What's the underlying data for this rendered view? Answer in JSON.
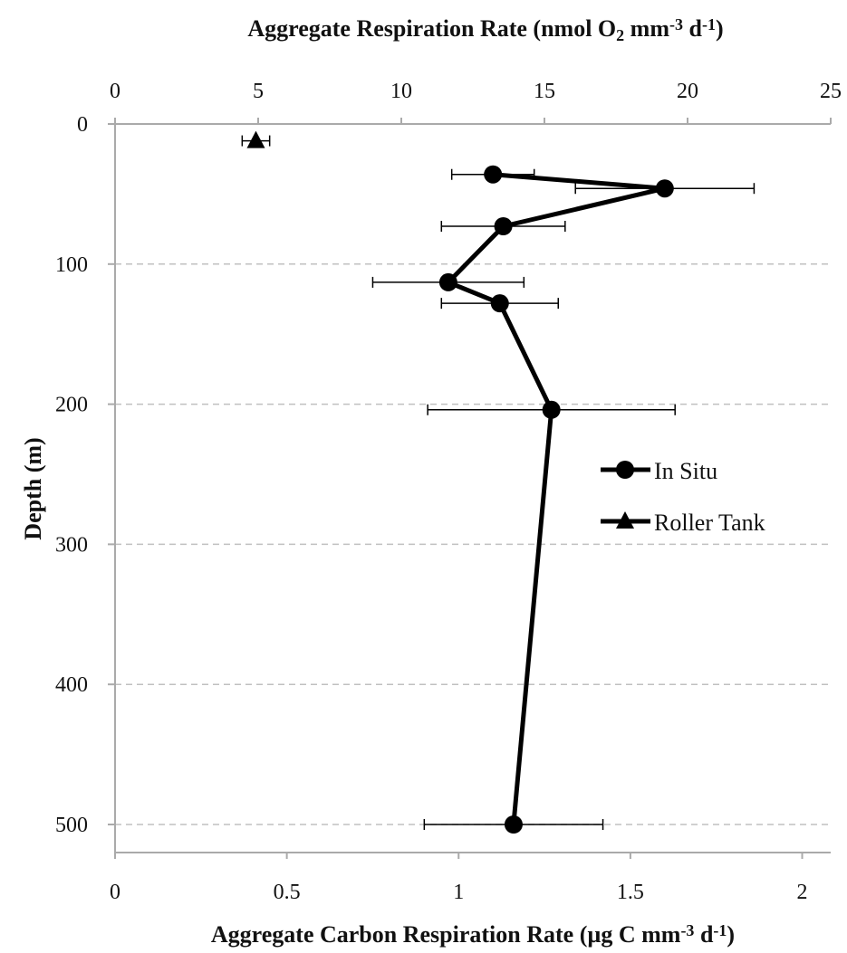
{
  "chart_data": {
    "type": "line",
    "top_axis": {
      "title_parts": [
        "Aggregate Respiration Rate (nmol O",
        "2",
        " mm",
        "-3",
        " d",
        "-1",
        ")"
      ],
      "range": [
        0,
        25
      ],
      "ticks": [
        "0",
        "5",
        "10",
        "15",
        "20",
        "25"
      ]
    },
    "bottom_axis": {
      "title_parts": [
        "Aggregate Carbon Respiration Rate (µg C mm",
        "-3",
        " d",
        "-1",
        ")"
      ],
      "range": [
        0,
        2.083
      ],
      "ticks": [
        "0",
        "0.5",
        "1",
        "1.5",
        "2"
      ]
    },
    "y_axis": {
      "title": "Depth (m)",
      "range": [
        0,
        520
      ],
      "inverted": true,
      "ticks": [
        "0",
        "100",
        "200",
        "300",
        "400",
        "500"
      ]
    },
    "grid": "horizontal dashed",
    "legend_position": "right-middle",
    "series": [
      {
        "name": "In Situ",
        "marker": "circle",
        "connected": true,
        "points": [
          {
            "x": 1.1,
            "y": 36,
            "err": 0.12
          },
          {
            "x": 1.6,
            "y": 46,
            "err": 0.26
          },
          {
            "x": 1.13,
            "y": 73,
            "err": 0.18
          },
          {
            "x": 0.97,
            "y": 113,
            "err": 0.22
          },
          {
            "x": 1.12,
            "y": 128,
            "err": 0.17
          },
          {
            "x": 1.27,
            "y": 204,
            "err": 0.36
          },
          {
            "x": 1.16,
            "y": 500,
            "err": 0.26
          }
        ]
      },
      {
        "name": "Roller Tank",
        "marker": "triangle",
        "connected": false,
        "points": [
          {
            "x": 0.41,
            "y": 12,
            "err": 0.04
          }
        ]
      }
    ]
  }
}
